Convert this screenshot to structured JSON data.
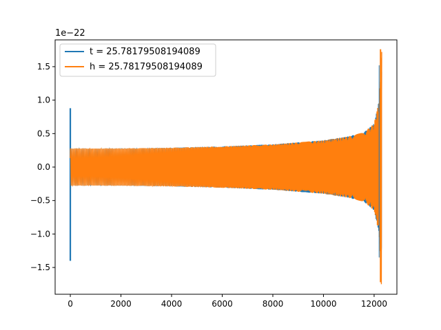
{
  "chart_data": {
    "type": "line",
    "offset_text": "1e−22",
    "xlim": [
      -600,
      12900
    ],
    "ylim": [
      -1.9,
      1.9
    ],
    "y_unit_exponent": -22,
    "x_ticks": [
      {
        "value": 0,
        "label": "0"
      },
      {
        "value": 2000,
        "label": "2000"
      },
      {
        "value": 4000,
        "label": "4000"
      },
      {
        "value": 6000,
        "label": "6000"
      },
      {
        "value": 8000,
        "label": "8000"
      },
      {
        "value": 10000,
        "label": "10000"
      },
      {
        "value": 12000,
        "label": "12000"
      }
    ],
    "y_ticks": [
      {
        "value": 1.5,
        "label": "1.5"
      },
      {
        "value": 1.0,
        "label": "1.0"
      },
      {
        "value": 0.5,
        "label": "0.5"
      },
      {
        "value": 0.0,
        "label": "0.0"
      },
      {
        "value": -0.5,
        "label": "−0.5"
      },
      {
        "value": -1.0,
        "label": "−1.0"
      },
      {
        "value": -1.5,
        "label": "−1.5"
      }
    ],
    "grid": false,
    "legend_position": "upper-left",
    "series": [
      {
        "name": "t = 25.78179508194089",
        "color": "#1f77b4",
        "description_points": {
          "spike_x": 0,
          "spike_max": 0.88,
          "spike_min": -1.4,
          "envelope_x": [
            0,
            2000,
            4000,
            6000,
            8000,
            10000,
            11000,
            11600,
            12000,
            12200,
            12300
          ],
          "envelope_amp": [
            0.28,
            0.28,
            0.29,
            0.31,
            0.34,
            0.4,
            0.46,
            0.52,
            0.65,
            1.0,
            1.5
          ]
        }
      },
      {
        "name": "h = 25.78179508194089",
        "color": "#ff7f0e",
        "description_points": {
          "start_x": 0,
          "end_x": 12300,
          "envelope_x": [
            0,
            2000,
            4000,
            6000,
            8000,
            10000,
            11000,
            11600,
            12000,
            12200,
            12280
          ],
          "envelope_amp": [
            0.28,
            0.28,
            0.29,
            0.31,
            0.34,
            0.4,
            0.46,
            0.52,
            0.65,
            1.0,
            1.75
          ],
          "final_max": 1.76,
          "final_min": -1.72
        }
      }
    ]
  }
}
